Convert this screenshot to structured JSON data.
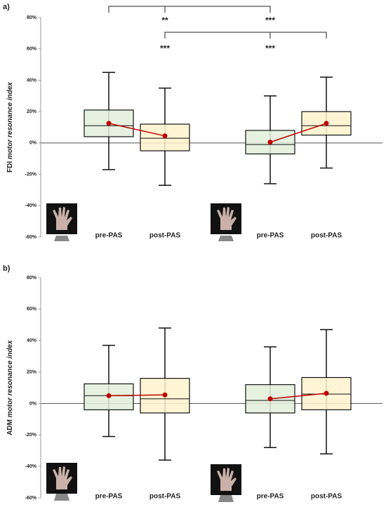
{
  "chart_data": [
    {
      "type": "box",
      "panel": "a)",
      "ylabel": [
        "FDI",
        "motor resonance index"
      ],
      "categories": [
        "pre-PAS",
        "post-PAS",
        "pre-PAS",
        "post-PAS"
      ],
      "colors": [
        "#e2efd9",
        "#fff2cc",
        "#e2efd9",
        "#fff2cc"
      ],
      "mean_color": "#c00000",
      "boxes": [
        {
          "whisker_low": -17,
          "q1": 4,
          "median": 11,
          "q3": 21,
          "whisker_high": 45,
          "mean": 12.5
        },
        {
          "whisker_low": -27,
          "q1": -5,
          "median": 3,
          "q3": 12,
          "whisker_high": 35,
          "mean": 4.5
        },
        {
          "whisker_low": -26,
          "q1": -7,
          "median": -1,
          "q3": 8,
          "whisker_high": 30,
          "mean": 0.5
        },
        {
          "whisker_low": -16,
          "q1": 5,
          "median": 11,
          "q3": 20,
          "whisker_high": 42,
          "mean": 12.5
        }
      ],
      "annotations": [
        "**",
        "***",
        "***",
        "***"
      ],
      "ylim": [
        -60,
        80
      ],
      "yticks": [
        {
          "value": -60,
          "label": "-60%"
        },
        {
          "value": -40,
          "label": "-40%"
        },
        {
          "value": -20,
          "label": "-20%"
        },
        {
          "value": 0,
          "label": "0%"
        },
        {
          "value": 20,
          "label": "20%"
        },
        {
          "value": 40,
          "label": "40%"
        },
        {
          "value": 60,
          "label": "60%"
        },
        {
          "value": 80,
          "label": "80%"
        }
      ]
    },
    {
      "type": "box",
      "panel": "b)",
      "ylabel": [
        "ADM",
        "motor resonance index"
      ],
      "categories": [
        "pre-PAS",
        "post-PAS",
        "pre-PAS",
        "post-PAS"
      ],
      "colors": [
        "#e2efd9",
        "#fff2cc",
        "#e2efd9",
        "#fff2cc"
      ],
      "mean_color": "#c00000",
      "boxes": [
        {
          "whisker_low": -21,
          "q1": -4,
          "median": 5,
          "q3": 12.5,
          "whisker_high": 37,
          "mean": 5
        },
        {
          "whisker_low": -36,
          "q1": -6,
          "median": 3,
          "q3": 16,
          "whisker_high": 48,
          "mean": 5.5
        },
        {
          "whisker_low": -28,
          "q1": -6,
          "median": 2,
          "q3": 12,
          "whisker_high": 36,
          "mean": 3
        },
        {
          "whisker_low": -32,
          "q1": -4,
          "median": 6,
          "q3": 16.5,
          "whisker_high": 47,
          "mean": 6.5
        }
      ],
      "ylim": [
        -60,
        80
      ],
      "yticks": [
        {
          "value": -60,
          "label": "-60%"
        },
        {
          "value": -40,
          "label": "-40%"
        },
        {
          "value": -20,
          "label": "-20%"
        },
        {
          "value": 0,
          "label": "0%"
        },
        {
          "value": 20,
          "label": "20%"
        },
        {
          "value": 40,
          "label": "40%"
        },
        {
          "value": 60,
          "label": "60%"
        },
        {
          "value": 80,
          "label": "80%"
        }
      ]
    }
  ]
}
